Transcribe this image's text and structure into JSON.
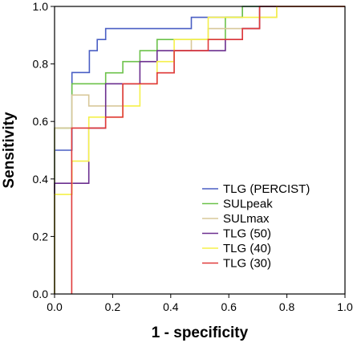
{
  "chart_data": {
    "type": "line",
    "title": "",
    "xlabel": "1 - specificity",
    "ylabel": "Sensitivity",
    "xlim": [
      0,
      1
    ],
    "ylim": [
      0,
      1
    ],
    "xticks": [
      "0.0",
      "0.2",
      "0.4",
      "0.6",
      "0.8",
      "1.0"
    ],
    "yticks": [
      "0.0",
      "0.2",
      "0.4",
      "0.6",
      "0.8",
      "1.0"
    ],
    "grid": false,
    "legend_position": "bottom-right",
    "series": [
      {
        "name": "TLG (PERCIST)",
        "color": "#4a5fc4",
        "points": [
          [
            0,
            0
          ],
          [
            0,
            0.5
          ],
          [
            0.06,
            0.5
          ],
          [
            0.06,
            0.77
          ],
          [
            0.12,
            0.77
          ],
          [
            0.12,
            0.846
          ],
          [
            0.147,
            0.846
          ],
          [
            0.147,
            0.885
          ],
          [
            0.176,
            0.885
          ],
          [
            0.176,
            0.923
          ],
          [
            0.471,
            0.923
          ],
          [
            0.471,
            0.962
          ],
          [
            0.647,
            0.962
          ],
          [
            0.647,
            1
          ],
          [
            1,
            1
          ]
        ]
      },
      {
        "name": "SULpeak",
        "color": "#6cc24a",
        "points": [
          [
            0,
            0
          ],
          [
            0,
            0.577
          ],
          [
            0.06,
            0.577
          ],
          [
            0.06,
            0.731
          ],
          [
            0.176,
            0.731
          ],
          [
            0.176,
            0.769
          ],
          [
            0.235,
            0.769
          ],
          [
            0.235,
            0.808
          ],
          [
            0.294,
            0.808
          ],
          [
            0.294,
            0.846
          ],
          [
            0.353,
            0.846
          ],
          [
            0.353,
            0.885
          ],
          [
            0.588,
            0.885
          ],
          [
            0.588,
            0.962
          ],
          [
            0.647,
            0.962
          ],
          [
            0.647,
            1
          ],
          [
            1,
            1
          ]
        ]
      },
      {
        "name": "SULmax",
        "color": "#d8c89a",
        "points": [
          [
            0,
            0
          ],
          [
            0,
            0.577
          ],
          [
            0.06,
            0.577
          ],
          [
            0.06,
            0.692
          ],
          [
            0.118,
            0.692
          ],
          [
            0.118,
            0.654
          ],
          [
            0.235,
            0.654
          ],
          [
            0.235,
            0.731
          ],
          [
            0.353,
            0.731
          ],
          [
            0.353,
            0.769
          ],
          [
            0.412,
            0.769
          ],
          [
            0.412,
            0.846
          ],
          [
            0.471,
            0.846
          ],
          [
            0.471,
            0.885
          ],
          [
            0.529,
            0.885
          ],
          [
            0.529,
            0.923
          ],
          [
            0.706,
            0.923
          ],
          [
            0.706,
            0.962
          ],
          [
            0.765,
            0.962
          ],
          [
            0.765,
            1
          ],
          [
            1,
            1
          ]
        ]
      },
      {
        "name": "TLG (50)",
        "color": "#6b2f8f",
        "points": [
          [
            0,
            0
          ],
          [
            0,
            0.385
          ],
          [
            0.118,
            0.385
          ],
          [
            0.118,
            0.577
          ],
          [
            0.176,
            0.577
          ],
          [
            0.176,
            0.731
          ],
          [
            0.294,
            0.731
          ],
          [
            0.294,
            0.808
          ],
          [
            0.353,
            0.808
          ],
          [
            0.353,
            0.846
          ],
          [
            0.588,
            0.846
          ],
          [
            0.588,
            0.885
          ],
          [
            0.647,
            0.885
          ],
          [
            0.647,
            0.923
          ],
          [
            0.706,
            0.923
          ],
          [
            0.706,
            1
          ],
          [
            1,
            1
          ]
        ]
      },
      {
        "name": "TLG (40)",
        "color": "#f5f04a",
        "points": [
          [
            0,
            0
          ],
          [
            0,
            0.346
          ],
          [
            0.06,
            0.346
          ],
          [
            0.06,
            0.462
          ],
          [
            0.118,
            0.462
          ],
          [
            0.118,
            0.615
          ],
          [
            0.235,
            0.615
          ],
          [
            0.235,
            0.654
          ],
          [
            0.294,
            0.654
          ],
          [
            0.294,
            0.731
          ],
          [
            0.353,
            0.731
          ],
          [
            0.353,
            0.808
          ],
          [
            0.412,
            0.808
          ],
          [
            0.412,
            0.885
          ],
          [
            0.529,
            0.885
          ],
          [
            0.529,
            0.962
          ],
          [
            0.765,
            0.962
          ],
          [
            0.765,
            1
          ],
          [
            1,
            1
          ]
        ]
      },
      {
        "name": "TLG (30)",
        "color": "#e03a3a",
        "points": [
          [
            0.059,
            0
          ],
          [
            0.059,
            0.577
          ],
          [
            0.176,
            0.577
          ],
          [
            0.176,
            0.615
          ],
          [
            0.235,
            0.615
          ],
          [
            0.235,
            0.731
          ],
          [
            0.353,
            0.731
          ],
          [
            0.353,
            0.769
          ],
          [
            0.412,
            0.769
          ],
          [
            0.412,
            0.846
          ],
          [
            0.529,
            0.846
          ],
          [
            0.529,
            0.885
          ],
          [
            0.647,
            0.885
          ],
          [
            0.647,
            0.923
          ],
          [
            0.706,
            0.923
          ],
          [
            0.706,
            1
          ],
          [
            1,
            1
          ]
        ]
      }
    ]
  }
}
